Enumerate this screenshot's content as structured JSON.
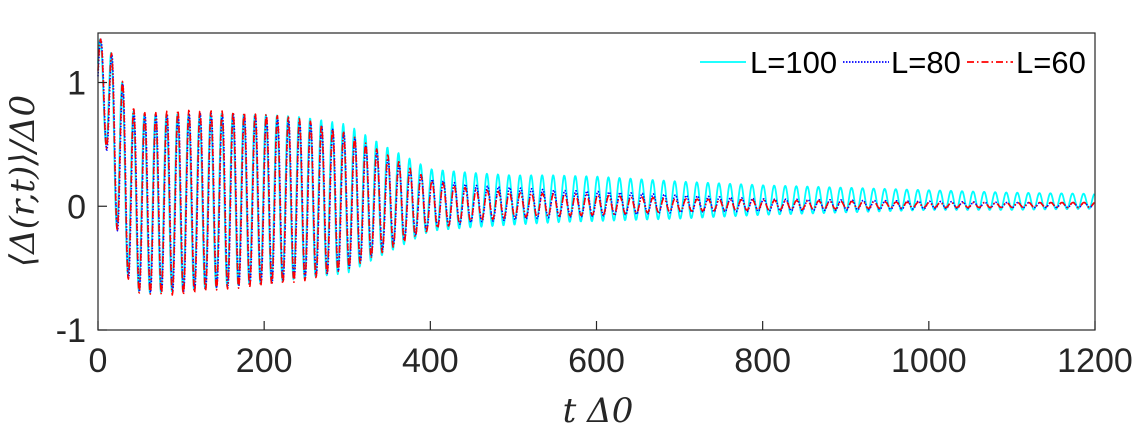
{
  "chart_data": {
    "type": "line",
    "title": "",
    "xlabel": "t Δ0",
    "ylabel": "⟨Δ(r,t)⟩/Δ0",
    "xlim": [
      0,
      1200
    ],
    "ylim": [
      -1,
      1.4
    ],
    "xticks": [
      "0",
      "200",
      "400",
      "600",
      "800",
      "1000",
      "1200"
    ],
    "yticks": [
      "-1",
      "0",
      "1"
    ],
    "grid": false,
    "legend_position": "top-right",
    "legend_orientation": "horizontal",
    "x_sampled": [
      5,
      20,
      40,
      60,
      100,
      150,
      200,
      250,
      300,
      350,
      400,
      450,
      500,
      550,
      600,
      700,
      800,
      900,
      1000,
      1100,
      1200
    ],
    "series": [
      {
        "name": "L=100",
        "color": "#00FFFF",
        "style": "solid",
        "period": 13.3,
        "mean": [
          1.05,
          0.55,
          0.05,
          0.02,
          0.03,
          0.05,
          0.06,
          0.07,
          0.06,
          0.05,
          0.05,
          0.05,
          0.05,
          0.06,
          0.06,
          0.05,
          0.05,
          0.05,
          0.05,
          0.04,
          0.04
        ],
        "amplitude": [
          0.3,
          0.65,
          0.72,
          0.72,
          0.72,
          0.7,
          0.68,
          0.65,
          0.6,
          0.42,
          0.25,
          0.22,
          0.2,
          0.19,
          0.18,
          0.15,
          0.12,
          0.1,
          0.08,
          0.07,
          0.06
        ]
      },
      {
        "name": "L=80",
        "color": "#0000FF",
        "style": "dotted",
        "period": 13.3,
        "mean": [
          1.05,
          0.55,
          0.05,
          0.02,
          0.03,
          0.05,
          0.05,
          0.05,
          0.04,
          0.03,
          0.02,
          0.02,
          0.02,
          0.02,
          0.02,
          0.02,
          0.01,
          0.01,
          0.01,
          0.01,
          0.01
        ],
        "amplitude": [
          0.3,
          0.65,
          0.73,
          0.72,
          0.72,
          0.7,
          0.68,
          0.63,
          0.55,
          0.35,
          0.2,
          0.15,
          0.13,
          0.11,
          0.1,
          0.07,
          0.05,
          0.04,
          0.03,
          0.02,
          0.02
        ]
      },
      {
        "name": "L=60",
        "color": "#FF0000",
        "style": "dashdot",
        "period": 13.3,
        "mean": [
          1.05,
          0.55,
          0.05,
          0.02,
          0.03,
          0.05,
          0.05,
          0.05,
          0.04,
          0.03,
          0.01,
          0.01,
          0.01,
          0.01,
          0.01,
          0.01,
          0.01,
          0.01,
          0.01,
          0.01,
          0.01
        ],
        "amplitude": [
          0.3,
          0.65,
          0.75,
          0.73,
          0.75,
          0.72,
          0.7,
          0.65,
          0.55,
          0.38,
          0.2,
          0.13,
          0.1,
          0.09,
          0.08,
          0.05,
          0.04,
          0.03,
          0.02,
          0.02,
          0.02
        ]
      }
    ]
  }
}
